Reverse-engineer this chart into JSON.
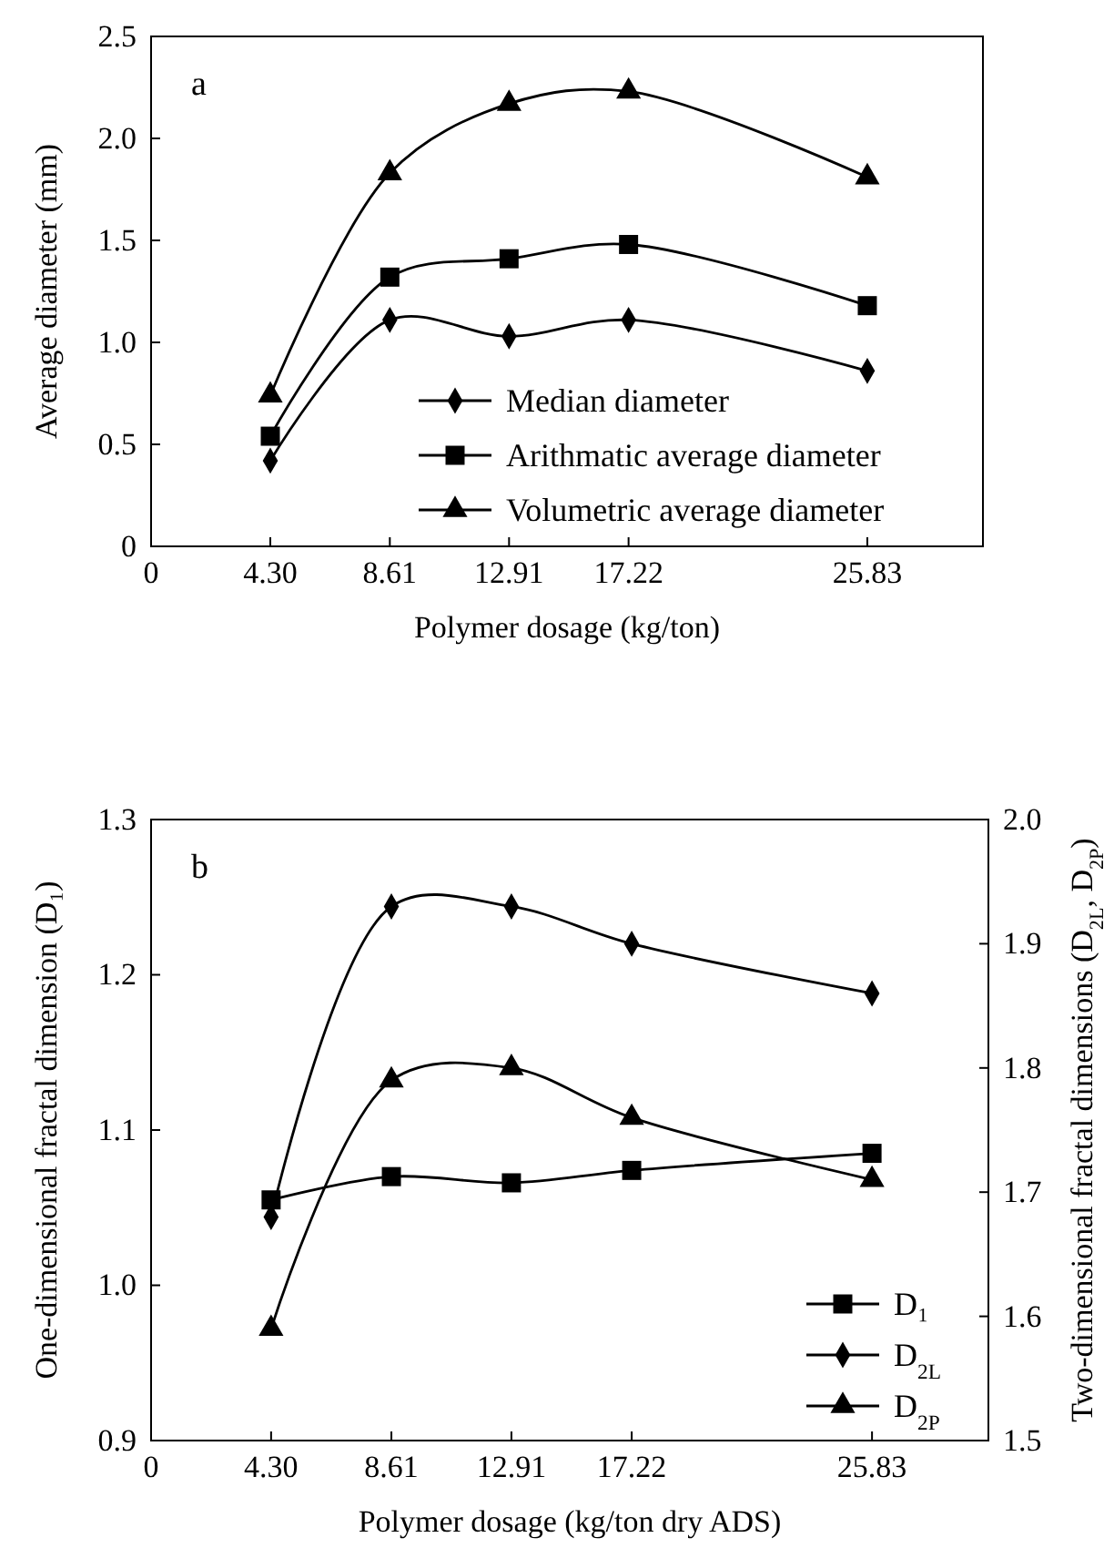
{
  "chart_data": [
    {
      "type": "line",
      "xlabel": "Polymer dosage (kg/ton)",
      "ylabel": "Average diameter (mm)",
      "annotations": [
        "a"
      ],
      "x": [
        4.3,
        8.61,
        12.91,
        17.22,
        25.83
      ],
      "xlim": [
        0,
        30
      ],
      "xticks": [
        0,
        {
          "value": 4.3,
          "label": "4.30"
        },
        8.61,
        12.91,
        17.22,
        25.83
      ],
      "ylim": [
        0,
        2.5
      ],
      "yticks": [
        0,
        {
          "value": 0.5,
          "label": "0.5"
        },
        {
          "value": 1,
          "label": "1.0"
        },
        1.5,
        {
          "value": 2,
          "label": "2.0"
        },
        2.5
      ],
      "legend": "bottom right",
      "grid": false,
      "line_style": "solid",
      "series": [
        {
          "name": "Median diameter",
          "color": "#000000",
          "marker": "diamond",
          "values": [
            0.42,
            1.11,
            1.03,
            1.11,
            0.86
          ]
        },
        {
          "name": "Arithmatic average diameter",
          "color": "#000000",
          "marker": "square",
          "values": [
            0.54,
            1.32,
            1.41,
            1.48,
            1.18
          ]
        },
        {
          "name": "Volumetric average diameter",
          "color": "#000000",
          "marker": "triangle",
          "values": [
            0.74,
            1.83,
            2.17,
            2.23,
            1.81
          ]
        }
      ]
    },
    {
      "type": "line",
      "xlabel": "Polymer dosage (kg/ton dry ADS)",
      "ylabel": "One-dimensional fractal dimension (D₁)",
      "y2label": "Two-dimensional fractal dimensions (D$_{2L}$, D$_{2P}$)",
      "annotations": [
        "b"
      ],
      "x": [
        4.3,
        8.61,
        12.91,
        17.22,
        25.83
      ],
      "xlim": [
        0,
        30
      ],
      "xticks": [
        0,
        {
          "value": 4.3,
          "label": "4.30"
        },
        8.61,
        12.91,
        17.22,
        25.83
      ],
      "ylim": [
        0.9,
        1.3
      ],
      "yticks": [
        0.9,
        {
          "value": 1,
          "label": "1.0"
        },
        1.1,
        1.2,
        1.3
      ],
      "y2lim": [
        1.5,
        2.0
      ],
      "y2ticks": [
        1.5,
        1.6,
        1.7,
        1.8,
        1.9,
        {
          "value": 2,
          "label": "2.0"
        }
      ],
      "legend": "bottom right",
      "grid": false,
      "line_style": "solid",
      "series": [
        {
          "name": "D₁",
          "color": "#000000",
          "marker": "square",
          "values": [
            1.055,
            1.07,
            1.066,
            1.074,
            1.085
          ]
        },
        {
          "name": "D$_{2L}$",
          "color": "#000000",
          "marker": "diamond",
          "axis": "y2",
          "values": [
            1.68,
            1.93,
            1.93,
            1.9,
            1.86
          ]
        },
        {
          "name": "D$_{2P}$",
          "color": "#000000",
          "marker": "triangle",
          "axis": "y2",
          "values": [
            1.59,
            1.79,
            1.8,
            1.76,
            1.71
          ]
        }
      ]
    }
  ]
}
